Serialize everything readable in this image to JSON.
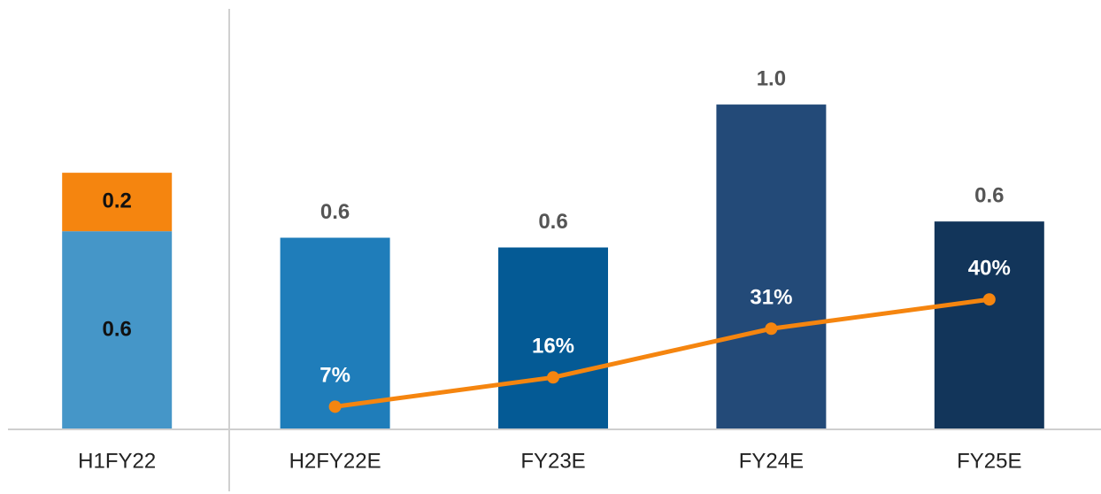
{
  "chart_data": {
    "type": "bar",
    "categories": [
      "H1FY22",
      "H2FY22E",
      "FY23E",
      "FY24E",
      "FY25E"
    ],
    "ylim": [
      0,
      1.3
    ],
    "y2lim": [
      0,
      130
    ],
    "series": [
      {
        "type": "bar",
        "values": [
          0.61,
          0.59,
          0.56,
          1.0,
          0.64
        ],
        "value_labels": [
          "0.6",
          "0.6",
          "0.6",
          "1.0",
          "0.6"
        ],
        "colors": [
          "#4596c8",
          "#1f7dba",
          "#045a95",
          "#234a78",
          "#12355a"
        ]
      },
      {
        "type": "bar",
        "values": [
          0.18,
          null,
          null,
          null,
          null
        ],
        "value_labels": [
          "0.2",
          null,
          null,
          null,
          null
        ],
        "color": "#f5850f"
      },
      {
        "type": "line",
        "axis": "y2",
        "values": [
          null,
          7,
          16,
          31,
          40
        ],
        "value_labels": [
          null,
          "7%",
          "16%",
          "31%",
          "40%"
        ],
        "color": "#f5850f"
      }
    ]
  }
}
